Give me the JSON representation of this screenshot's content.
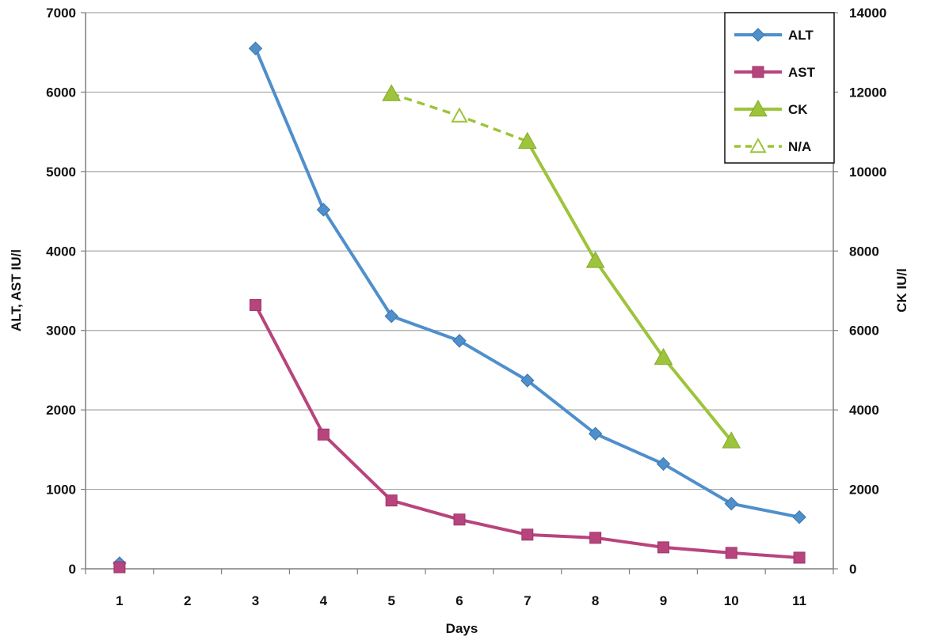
{
  "chart_data": {
    "type": "line",
    "xlabel": "Days",
    "ylabel_left": "ALT, AST  IU/l",
    "ylabel_right": "CK  IU/l",
    "x": [
      1,
      2,
      3,
      4,
      5,
      6,
      7,
      8,
      9,
      10,
      11
    ],
    "y_left_range": [
      0,
      7000
    ],
    "y_left_ticks": [
      0,
      1000,
      2000,
      3000,
      4000,
      5000,
      6000,
      7000
    ],
    "y_right_range": [
      0,
      14000
    ],
    "y_right_ticks": [
      0,
      2000,
      4000,
      6000,
      8000,
      10000,
      12000,
      14000
    ],
    "grid": "horizontal",
    "legend_position": "top-right",
    "series": [
      {
        "name": "ALT",
        "axis": "left",
        "color": "#4f8fcc",
        "marker": "diamond",
        "style": "solid",
        "points": [
          [
            1,
            70
          ],
          [
            3,
            6550
          ],
          [
            4,
            4520
          ],
          [
            5,
            3180
          ],
          [
            6,
            2870
          ],
          [
            7,
            2370
          ],
          [
            8,
            1700
          ],
          [
            9,
            1320
          ],
          [
            10,
            820
          ],
          [
            11,
            650
          ]
        ],
        "segments": [
          [
            3,
            4,
            5,
            6,
            7,
            8,
            9,
            10,
            11
          ]
        ]
      },
      {
        "name": "AST",
        "axis": "left",
        "color": "#b8447e",
        "marker": "square",
        "style": "solid",
        "points": [
          [
            1,
            20
          ],
          [
            3,
            3320
          ],
          [
            4,
            1690
          ],
          [
            5,
            860
          ],
          [
            6,
            620
          ],
          [
            7,
            430
          ],
          [
            8,
            390
          ],
          [
            9,
            270
          ],
          [
            10,
            200
          ],
          [
            11,
            140
          ]
        ],
        "segments": [
          [
            3,
            4,
            5,
            6,
            7,
            8,
            9,
            10,
            11
          ]
        ]
      },
      {
        "name": "CK",
        "axis": "right",
        "color": "#9dc43a",
        "marker": "triangle",
        "style": "solid",
        "points": [
          [
            5,
            11960
          ],
          [
            7,
            10760
          ],
          [
            8,
            7760
          ],
          [
            9,
            5320
          ],
          [
            10,
            3220
          ]
        ],
        "segments": [
          [
            7,
            8,
            9,
            10
          ]
        ]
      },
      {
        "name": "N/A",
        "axis": "right",
        "color": "#9dc43a",
        "marker": "triangle-open",
        "style": "dashed",
        "points": [
          [
            5,
            11960
          ],
          [
            6,
            11400
          ],
          [
            7,
            10760
          ]
        ],
        "markers_at": [
          6
        ],
        "segments": [
          [
            5,
            6,
            7
          ]
        ]
      }
    ]
  }
}
